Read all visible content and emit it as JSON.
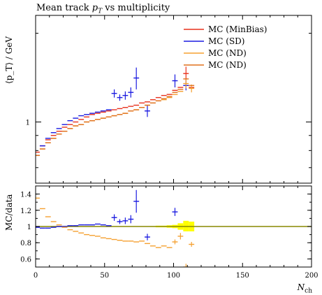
{
  "chart_data": {
    "type": "line",
    "title": "Mean track p_T vs multiplicity",
    "title_parts": {
      "pre": "Mean track ",
      "var": "p",
      "sub": "T",
      "post": " vs multiplicity"
    },
    "ylabel": "⟨p_T⟩ / GeV",
    "ylabel_ratio": "MC/data",
    "xlabel": "N_ch",
    "xlabel_parts": {
      "var": "N",
      "sub": "ch"
    },
    "xlim": [
      0,
      200
    ],
    "ylim_main_log": true,
    "main_yticks": [
      {
        "value": 1,
        "label": "1"
      }
    ],
    "ratio_ylim": [
      0.5,
      1.5
    ],
    "ratio_yticks": [
      "0.6",
      "0.8",
      "1",
      "1.2",
      "1.4"
    ],
    "xticks": [
      "0",
      "50",
      "100",
      "150",
      "200"
    ],
    "legend_position": "top-right",
    "colors": {
      "MinBias": "#e8301c",
      "SD": "#1a1ae0",
      "ND1": "#f5a030",
      "ND2": "#e0701c",
      "band": "#ffff00",
      "ratio_line": "#888800"
    },
    "series": [
      {
        "name": "MC (MinBias)",
        "color": "#e8301c",
        "points": [
          [
            1,
            0.79
          ],
          [
            5,
            0.83
          ],
          [
            9,
            0.87
          ],
          [
            13,
            0.9
          ],
          [
            17,
            0.93
          ],
          [
            21,
            0.96
          ],
          [
            25,
            0.98
          ],
          [
            29,
            1.0
          ],
          [
            33,
            1.02
          ],
          [
            37,
            1.04
          ],
          [
            41,
            1.06
          ],
          [
            45,
            1.07
          ],
          [
            49,
            1.08
          ],
          [
            53,
            1.09
          ],
          [
            57,
            1.1
          ],
          [
            61,
            1.11
          ],
          [
            65,
            1.12
          ],
          [
            69,
            1.13
          ],
          [
            73,
            1.14
          ],
          [
            77,
            1.16
          ],
          [
            81,
            1.17
          ],
          [
            85,
            1.19
          ],
          [
            89,
            1.21
          ],
          [
            93,
            1.23
          ],
          [
            97,
            1.24
          ],
          [
            101,
            1.28
          ],
          [
            105,
            1.31
          ],
          [
            109,
            1.46
          ],
          [
            113,
            1.31
          ]
        ],
        "errors": [
          [
            109,
            0.08
          ]
        ]
      },
      {
        "name": "MC (SD)",
        "color": "#1a1ae0",
        "points": [
          [
            1,
            0.77
          ],
          [
            5,
            0.83
          ],
          [
            9,
            0.88
          ],
          [
            13,
            0.92
          ],
          [
            17,
            0.95
          ],
          [
            21,
            0.98
          ],
          [
            25,
            1.01
          ],
          [
            29,
            1.03
          ],
          [
            33,
            1.05
          ],
          [
            37,
            1.06
          ],
          [
            41,
            1.07
          ],
          [
            45,
            1.08
          ],
          [
            49,
            1.09
          ],
          [
            53,
            1.1
          ],
          [
            57,
            1.25
          ],
          [
            61,
            1.21
          ],
          [
            65,
            1.23
          ],
          [
            69,
            1.26
          ],
          [
            73,
            1.41
          ],
          [
            81,
            1.09
          ],
          [
            101,
            1.38
          ],
          [
            109,
            1.33
          ]
        ],
        "errors": [
          [
            57,
            0.04
          ],
          [
            61,
            0.03
          ],
          [
            65,
            0.04
          ],
          [
            69,
            0.05
          ],
          [
            73,
            0.12
          ],
          [
            81,
            0.05
          ],
          [
            101,
            0.07
          ],
          [
            109,
            0.05
          ]
        ]
      },
      {
        "name": "MC (ND)",
        "color": "#f5a030",
        "points": [
          [
            1,
            0.77
          ],
          [
            5,
            0.81
          ],
          [
            9,
            0.85
          ],
          [
            13,
            0.88
          ],
          [
            17,
            0.91
          ],
          [
            21,
            0.93
          ],
          [
            25,
            0.95
          ],
          [
            29,
            0.97
          ],
          [
            33,
            0.98
          ],
          [
            37,
            1.0
          ],
          [
            41,
            1.01
          ],
          [
            45,
            1.02
          ],
          [
            49,
            1.03
          ],
          [
            53,
            1.04
          ],
          [
            57,
            1.05
          ],
          [
            61,
            1.06
          ],
          [
            65,
            1.07
          ],
          [
            69,
            1.09
          ],
          [
            73,
            1.1
          ],
          [
            77,
            1.12
          ],
          [
            81,
            1.14
          ],
          [
            85,
            1.16
          ],
          [
            89,
            1.18
          ],
          [
            93,
            1.19
          ],
          [
            97,
            1.21
          ],
          [
            101,
            1.24
          ],
          [
            105,
            1.27
          ],
          [
            109,
            1.35
          ],
          [
            113,
            1.3
          ]
        ],
        "errors": [
          [
            109,
            0.05
          ],
          [
            113,
            0.04
          ]
        ]
      },
      {
        "name": "MC (ND)",
        "color": "#e0701c",
        "points": [
          [
            1,
            0.77
          ],
          [
            5,
            0.81
          ],
          [
            9,
            0.85
          ],
          [
            13,
            0.88
          ],
          [
            17,
            0.91
          ],
          [
            21,
            0.93
          ],
          [
            25,
            0.95
          ],
          [
            29,
            0.97
          ],
          [
            33,
            0.98
          ],
          [
            37,
            1.0
          ],
          [
            41,
            1.01
          ],
          [
            45,
            1.02
          ],
          [
            49,
            1.03
          ],
          [
            53,
            1.04
          ],
          [
            57,
            1.05
          ],
          [
            61,
            1.06
          ],
          [
            65,
            1.07
          ],
          [
            69,
            1.09
          ],
          [
            73,
            1.1
          ],
          [
            77,
            1.12
          ],
          [
            81,
            1.14
          ],
          [
            85,
            1.16
          ],
          [
            89,
            1.18
          ],
          [
            93,
            1.2
          ],
          [
            97,
            1.22
          ],
          [
            101,
            1.26
          ],
          [
            105,
            1.29
          ],
          [
            109,
            1.4
          ],
          [
            113,
            1.33
          ]
        ],
        "errors": []
      }
    ],
    "ratio_series": [
      {
        "name": "MC (SD)",
        "color": "#1a1ae0",
        "points": [
          [
            1,
            0.99
          ],
          [
            5,
            0.98
          ],
          [
            9,
            0.98
          ],
          [
            13,
            0.99
          ],
          [
            17,
            1.0
          ],
          [
            21,
            1.0
          ],
          [
            25,
            1.01
          ],
          [
            29,
            1.01
          ],
          [
            33,
            1.02
          ],
          [
            37,
            1.02
          ],
          [
            41,
            1.02
          ],
          [
            45,
            1.03
          ],
          [
            49,
            1.02
          ],
          [
            53,
            1.01
          ],
          [
            57,
            1.11
          ],
          [
            61,
            1.06
          ],
          [
            65,
            1.07
          ],
          [
            69,
            1.09
          ],
          [
            73,
            1.31
          ],
          [
            81,
            0.87
          ],
          [
            101,
            1.18
          ]
        ],
        "errors": [
          [
            57,
            0.04
          ],
          [
            61,
            0.03
          ],
          [
            65,
            0.04
          ],
          [
            69,
            0.05
          ],
          [
            73,
            0.14
          ],
          [
            81,
            0.04
          ],
          [
            101,
            0.05
          ]
        ]
      },
      {
        "name": "MC (ND)",
        "color": "#f5a030",
        "points": [
          [
            1,
            1.35
          ],
          [
            5,
            1.22
          ],
          [
            9,
            1.12
          ],
          [
            13,
            1.06
          ],
          [
            17,
            1.02
          ],
          [
            21,
            0.99
          ],
          [
            25,
            0.96
          ],
          [
            29,
            0.94
          ],
          [
            33,
            0.92
          ],
          [
            37,
            0.9
          ],
          [
            41,
            0.89
          ],
          [
            45,
            0.88
          ],
          [
            49,
            0.86
          ],
          [
            53,
            0.85
          ],
          [
            57,
            0.84
          ],
          [
            61,
            0.83
          ],
          [
            65,
            0.82
          ],
          [
            69,
            0.82
          ],
          [
            73,
            0.81
          ],
          [
            77,
            0.82
          ],
          [
            81,
            0.79
          ],
          [
            85,
            0.76
          ],
          [
            89,
            0.74
          ],
          [
            93,
            0.76
          ],
          [
            97,
            0.74
          ],
          [
            101,
            0.81
          ],
          [
            105,
            0.88
          ],
          [
            109,
            0.5
          ],
          [
            113,
            0.78
          ]
        ],
        "errors": [
          [
            101,
            0.03
          ],
          [
            105,
            0.04
          ],
          [
            109,
            0.04
          ],
          [
            113,
            0.03
          ]
        ]
      }
    ],
    "ratio_band": [
      [
        85,
        0.995,
        1.005
      ],
      [
        89,
        0.99,
        1.01
      ],
      [
        93,
        0.99,
        1.01
      ],
      [
        97,
        0.985,
        1.015
      ],
      [
        101,
        0.98,
        1.02
      ],
      [
        105,
        0.96,
        1.04
      ],
      [
        109,
        0.94,
        1.07
      ],
      [
        113,
        0.94,
        1.06
      ]
    ]
  }
}
